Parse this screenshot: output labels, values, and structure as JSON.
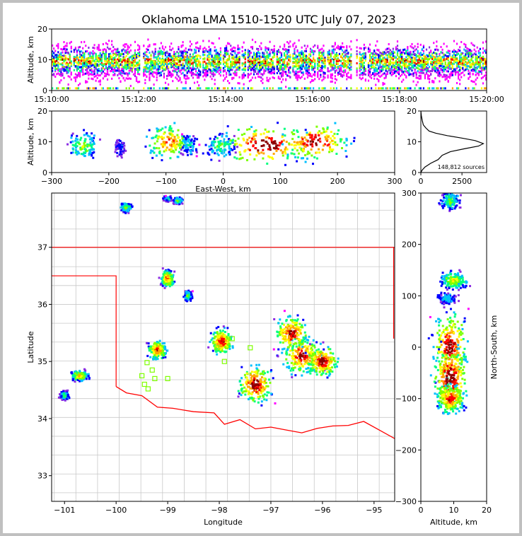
{
  "title": "Oklahoma LMA 1510-1520 UTC July 07, 2023",
  "colors": {
    "border": "#c0c0c0",
    "state_line": "#ff0000",
    "county_line": "#c8c8c8",
    "station": "#7fff00",
    "density_ramp": [
      "#ff00ff",
      "#8a2be2",
      "#0000ff",
      "#00bfff",
      "#00ff7f",
      "#7fff00",
      "#ffff00",
      "#ffa500",
      "#ff0000",
      "#8b0000"
    ]
  },
  "chart_data": [
    {
      "type": "heatmap",
      "panel": "time-altitude",
      "xlabel": "",
      "ylabel": "Altitude, km",
      "x_ticks": [
        "15:10:00",
        "15:12:00",
        "15:14:00",
        "15:16:00",
        "15:18:00",
        "15:20:00"
      ],
      "y_ticks": [
        0,
        10,
        20
      ],
      "ylim": [
        0,
        20
      ],
      "xlim": [
        "15:10:00",
        "15:20:00"
      ]
    },
    {
      "type": "heatmap",
      "panel": "east-west-altitude",
      "xlabel": "East-West, km",
      "ylabel": "Altitude, km",
      "x_ticks": [
        -300,
        -200,
        -100,
        0,
        100,
        200,
        300
      ],
      "y_ticks": [
        0,
        10,
        20
      ],
      "xlim": [
        -300,
        300
      ],
      "ylim": [
        0,
        20
      ],
      "clusters_x_km": [
        -245,
        -180,
        -95,
        -60,
        0,
        75,
        160
      ]
    },
    {
      "type": "line",
      "panel": "altitude-histogram",
      "annotation": "148,812 sources",
      "x_ticks": [
        0,
        2500
      ],
      "y_ticks": [
        0,
        10,
        20
      ],
      "xlim": [
        0,
        4000
      ],
      "ylim": [
        0,
        20
      ],
      "series": [
        {
          "x": [
            0,
            30,
            80,
            150,
            300,
            500,
            900,
            1600,
            2500,
            3300,
            3800,
            3500,
            2700,
            1800,
            1300,
            1050,
            600,
            250,
            80,
            0
          ],
          "y": [
            20,
            18.5,
            17,
            15.5,
            14.5,
            13.5,
            12.8,
            12,
            11.2,
            10.4,
            9.4,
            8.6,
            7.8,
            6.8,
            5.6,
            4.2,
            3.0,
            1.8,
            0.8,
            0
          ]
        }
      ]
    },
    {
      "type": "scatter",
      "panel": "plan-view",
      "xlabel": "Longitude",
      "ylabel": "Latitude",
      "x_ticks": [
        -101,
        -100,
        -99,
        -98,
        -97,
        -96,
        -95
      ],
      "y_ticks": [
        33,
        34,
        35,
        36,
        37
      ],
      "xlim": [
        -101.25,
        -94.6
      ],
      "ylim": [
        32.55,
        37.95
      ],
      "source_clusters": [
        {
          "lon": -99.8,
          "lat": 37.7
        },
        {
          "lon": -99.0,
          "lat": 37.85
        },
        {
          "lon": -98.8,
          "lat": 37.82
        },
        {
          "lon": -99.0,
          "lat": 36.45
        },
        {
          "lon": -98.6,
          "lat": 36.15
        },
        {
          "lon": -99.2,
          "lat": 35.2
        },
        {
          "lon": -97.95,
          "lat": 35.35
        },
        {
          "lon": -97.3,
          "lat": 34.6
        },
        {
          "lon": -96.4,
          "lat": 35.1
        },
        {
          "lon": -96.0,
          "lat": 35.0
        },
        {
          "lon": -96.6,
          "lat": 35.5
        },
        {
          "lon": -100.7,
          "lat": 34.75
        },
        {
          "lon": -101.0,
          "lat": 34.4
        }
      ],
      "stations": [
        {
          "lon": -99.4,
          "lat": 34.98
        },
        {
          "lon": -99.3,
          "lat": 34.85
        },
        {
          "lon": -99.25,
          "lat": 34.7
        },
        {
          "lon": -99.5,
          "lat": 34.75
        },
        {
          "lon": -99.45,
          "lat": 34.6
        },
        {
          "lon": -99.38,
          "lat": 34.52
        },
        {
          "lon": -99.0,
          "lat": 34.7
        },
        {
          "lon": -98.05,
          "lat": 35.24
        },
        {
          "lon": -97.9,
          "lat": 35.0
        },
        {
          "lon": -97.4,
          "lat": 35.24
        },
        {
          "lon": -97.75,
          "lat": 35.4
        }
      ]
    },
    {
      "type": "heatmap",
      "panel": "altitude-north-south",
      "xlabel": "Altitude, km",
      "ylabel": "North-South, km",
      "x_ticks": [
        0,
        10,
        20
      ],
      "y_ticks": [
        -300,
        -200,
        -100,
        0,
        100,
        200,
        300
      ],
      "xlim": [
        0,
        20
      ],
      "ylim": [
        -300,
        300
      ]
    }
  ]
}
